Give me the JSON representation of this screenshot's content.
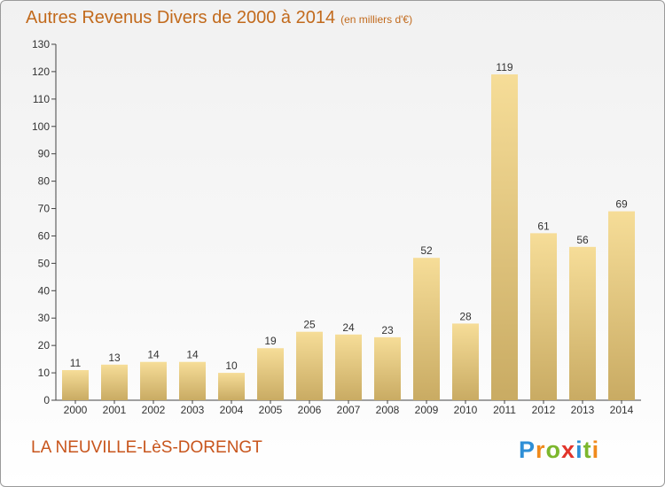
{
  "title": "Autres Revenus Divers de 2000 à 2014",
  "unit_note": "(en milliers d'€)",
  "commune": "LA NEUVILLE-LèS-DORENGT",
  "logo_text": "Proxiti",
  "colors": {
    "title": "#c26a1c",
    "bar_light": "#f6dd98",
    "bar_dark": "#c9ab63",
    "commune": "#c8551c"
  },
  "chart_data": {
    "type": "bar",
    "title": "Autres Revenus Divers de 2000 à 2014",
    "xlabel": "",
    "ylabel": "",
    "categories": [
      "2000",
      "2001",
      "2002",
      "2003",
      "2004",
      "2005",
      "2006",
      "2007",
      "2008",
      "2009",
      "2010",
      "2011",
      "2012",
      "2013",
      "2014"
    ],
    "values": [
      11,
      13,
      14,
      14,
      10,
      19,
      25,
      24,
      23,
      52,
      28,
      119,
      61,
      56,
      69
    ],
    "ylim": [
      0,
      130
    ],
    "yticks": [
      0,
      10,
      20,
      30,
      40,
      50,
      60,
      70,
      80,
      90,
      100,
      110,
      120,
      130
    ],
    "grid": false,
    "legend": "none"
  }
}
